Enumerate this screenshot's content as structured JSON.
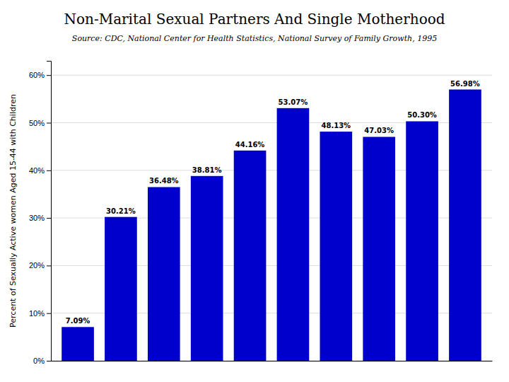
{
  "chart_data": {
    "type": "bar",
    "title": "Non-Marital Sexual Partners And Single Motherhood",
    "subtitle": "Source: CDC, National Center for Health Statistics, National Survey of Family Growth, 1995",
    "ylabel": "Percent of Sexually Active women Aged 15-44 with Children",
    "categories": [
      null,
      null,
      null,
      null,
      null,
      null,
      null,
      null,
      null,
      null
    ],
    "values": [
      7.09,
      30.21,
      36.48,
      38.81,
      44.16,
      53.07,
      48.13,
      47.03,
      50.3,
      56.98
    ],
    "value_labels": [
      "7.09%",
      "30.21%",
      "36.48%",
      "38.81%",
      "44.16%",
      "53.07%",
      "48.13%",
      "47.03%",
      "50.30%",
      "56.98%"
    ],
    "data_labels": true,
    "color": "#0000CC",
    "ylim": [
      0,
      63
    ],
    "yticks": [
      {
        "value": 0,
        "label": "0%"
      },
      {
        "value": 10,
        "label": "10%"
      },
      {
        "value": 20,
        "label": "20%"
      },
      {
        "value": 30,
        "label": "30%"
      },
      {
        "value": 40,
        "label": "40%"
      },
      {
        "value": 50,
        "label": "50%"
      },
      {
        "value": 60,
        "label": "60%"
      }
    ],
    "grid": true,
    "tick_labels": "y"
  }
}
